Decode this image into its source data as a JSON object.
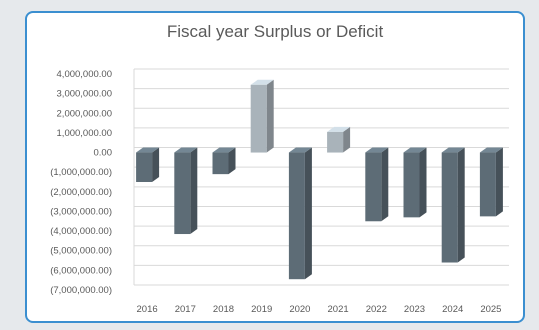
{
  "chart_data": {
    "type": "bar",
    "title": "Fiscal year Surplus or Deficit",
    "categories": [
      "2016",
      "2017",
      "2018",
      "2019",
      "2020",
      "2021",
      "2022",
      "2023",
      "2024",
      "2025"
    ],
    "values": [
      -1500000,
      -4150000,
      -1100000,
      3450000,
      -6450000,
      1050000,
      -3500000,
      -3300000,
      -5600000,
      -3250000
    ],
    "ylim": [
      -7000000,
      4000000
    ],
    "y_ticks": [
      4000000,
      3000000,
      2000000,
      1000000,
      0,
      -1000000,
      -2000000,
      -3000000,
      -4000000,
      -5000000,
      -6000000,
      -7000000
    ],
    "y_tick_labels": [
      "4,000,000.00",
      "3,000,000.00",
      "2,000,000.00",
      "1,000,000.00",
      "0.00",
      "(1,000,000.00)",
      "(2,000,000.00)",
      "(3,000,000.00)",
      "(4,000,000.00)",
      "(5,000,000.00)",
      "(6,000,000.00)",
      "(7,000,000.00)"
    ],
    "grid": true,
    "legend": "none",
    "colors": {
      "negative": "#5d6c76",
      "positive": "#a9b3ba"
    }
  }
}
